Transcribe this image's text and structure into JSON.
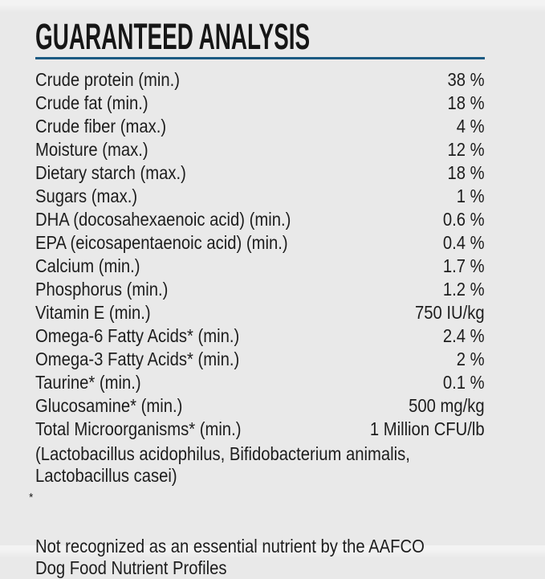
{
  "page": {
    "background_color": "#e9e9e9",
    "text_color": "#1d1d1d",
    "rule_color": "#1b5a82",
    "title": "GUARANTEED ANALYSIS"
  },
  "analysis": {
    "rows": [
      {
        "label": "Crude protein (min.)",
        "value": "38 %"
      },
      {
        "label": "Crude fat (min.)",
        "value": "18 %"
      },
      {
        "label": "Crude fiber (max.)",
        "value": "4 %"
      },
      {
        "label": "Moisture (max.)",
        "value": "12 %"
      },
      {
        "label": "Dietary starch (max.)",
        "value": "18 %"
      },
      {
        "label": "Sugars (max.)",
        "value": "1 %"
      },
      {
        "label": "DHA (docosahexaenoic acid) (min.)",
        "value": "0.6 %"
      },
      {
        "label": "EPA (eicosapentaenoic acid) (min.)",
        "value": "0.4 %"
      },
      {
        "label": "Calcium (min.)",
        "value": "1.7 %"
      },
      {
        "label": "Phosphorus (min.)",
        "value": "1.2 %"
      },
      {
        "label": "Vitamin E (min.)",
        "value": "750 IU/kg"
      },
      {
        "label": "Omega-6 Fatty Acids* (min.)",
        "value": "2.4 %"
      },
      {
        "label": "Omega-3 Fatty Acids* (min.)",
        "value": "2 %"
      },
      {
        "label": "Taurine* (min.)",
        "value": "0.1 %"
      },
      {
        "label": "Glucosamine* (min.)",
        "value": "500 mg/kg"
      },
      {
        "label": "Total Microorganisms* (min.)",
        "value": "1 Million CFU/lb"
      }
    ],
    "species_note": "(Lactobacillus acidophilus, Bifidobacterium animalis,\nLactobacillus casei)",
    "footnote_marker": "*",
    "footnote": "Not recognized as an essential nutrient by the AAFCO\nDog Food Nutrient Profiles"
  }
}
